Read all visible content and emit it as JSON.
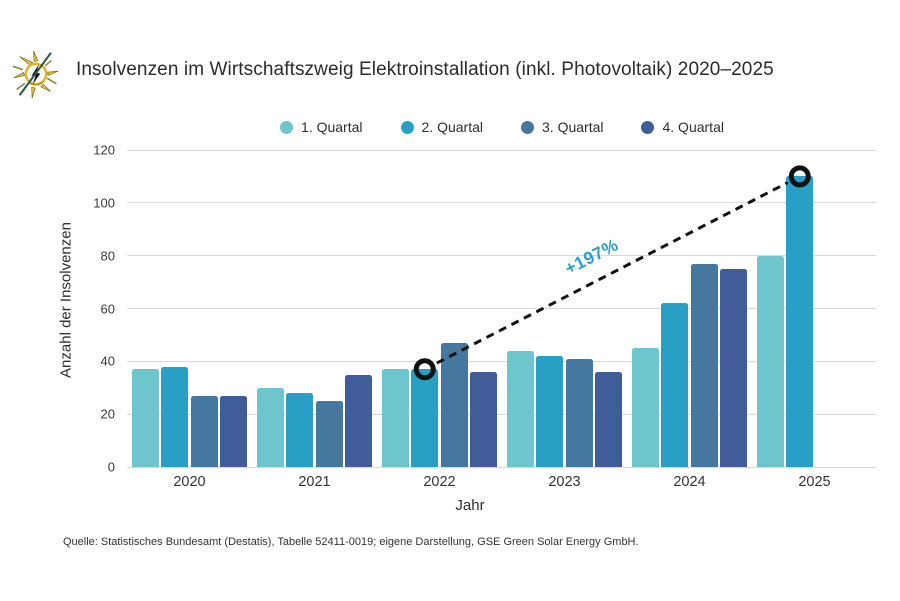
{
  "header": {
    "title": "Insolvenzen im Wirtschaftszweig Elektroinstallation (inkl. Photovoltaik) 2020–2025",
    "logo": "sun-lightning-icon"
  },
  "chart_data": {
    "type": "bar",
    "title": "Insolvenzen im Wirtschaftszweig Elektroinstallation (inkl. Photovoltaik) 2020–2025",
    "categories": [
      "2020",
      "2021",
      "2022",
      "2023",
      "2024",
      "2025"
    ],
    "series": [
      {
        "name": "1. Quartal",
        "color": "#6ec5ce",
        "values": [
          37,
          30,
          37,
          44,
          45,
          80
        ]
      },
      {
        "name": "2. Quartal",
        "color": "#28a0c6",
        "values": [
          38,
          28,
          37,
          42,
          62,
          110
        ]
      },
      {
        "name": "3. Quartal",
        "color": "#45779f",
        "values": [
          27,
          25,
          47,
          41,
          77,
          null
        ]
      },
      {
        "name": "4. Quartal",
        "color": "#405c99",
        "values": [
          27,
          35,
          36,
          36,
          75,
          null
        ]
      }
    ],
    "xlabel": "Jahr",
    "ylabel": "Anzahl der Insolvenzen",
    "ylim": [
      0,
      120
    ],
    "ytick_step": 20,
    "grid": true,
    "legend_position": "top",
    "annotation": {
      "label": "+197%",
      "color": "#2a9fc6",
      "from": {
        "category": "2022",
        "series": "2. Quartal",
        "value": 37
      },
      "to": {
        "category": "2025",
        "series": "2. Quartal",
        "value": 110
      }
    }
  },
  "source": "Quelle: Statistisches Bundesamt (Destatis), Tabelle 52411-0019; eigene Darstellung, GSE Green Solar Energy GmbH."
}
